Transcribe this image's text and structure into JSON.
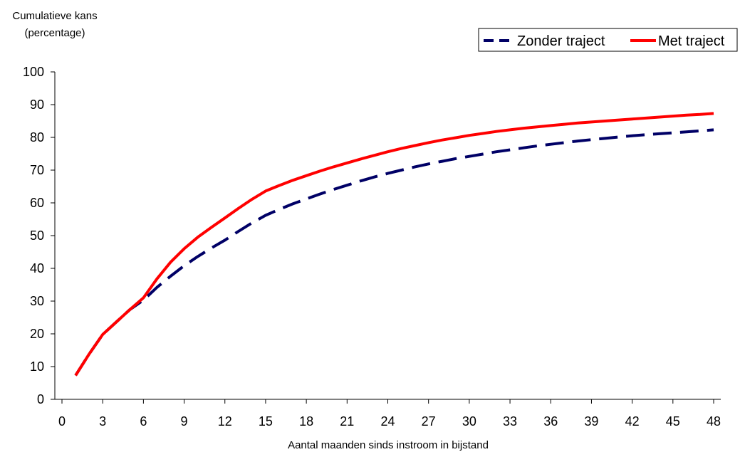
{
  "chart_data": {
    "type": "line",
    "ylabel_lines": [
      "Cumulatieve kans",
      "(percentage)"
    ],
    "xlabel": "Aantal maanden sinds instroom in bijstand",
    "xlim": [
      0,
      48
    ],
    "ylim": [
      0,
      100
    ],
    "xticks": [
      0,
      3,
      6,
      9,
      12,
      15,
      18,
      21,
      24,
      27,
      30,
      33,
      36,
      39,
      42,
      45,
      48
    ],
    "yticks": [
      0,
      10,
      20,
      30,
      40,
      50,
      60,
      70,
      80,
      90,
      100
    ],
    "grid": false,
    "legend_position": "top-right",
    "series": [
      {
        "name": "Zonder traject",
        "color": "#000066",
        "style": "dashed",
        "x": [
          1,
          2,
          3,
          4,
          5,
          6,
          7,
          8,
          9,
          10,
          11,
          12,
          13,
          14,
          15,
          16,
          17,
          18,
          19,
          20,
          21,
          22,
          23,
          24,
          25,
          26,
          27,
          28,
          29,
          30,
          31,
          32,
          33,
          34,
          35,
          36,
          37,
          38,
          39,
          40,
          41,
          42,
          43,
          44,
          45,
          46,
          47,
          48
        ],
        "values": [
          7.3,
          13.8,
          19.8,
          23.6,
          27.4,
          30.3,
          34.2,
          37.6,
          40.8,
          43.6,
          46.2,
          48.6,
          51.3,
          53.9,
          56.2,
          58.0,
          59.7,
          61.2,
          62.7,
          64.1,
          65.4,
          66.7,
          67.9,
          69.0,
          70.0,
          71.0,
          71.9,
          72.7,
          73.5,
          74.2,
          74.9,
          75.6,
          76.2,
          76.8,
          77.4,
          77.9,
          78.4,
          78.9,
          79.3,
          79.7,
          80.1,
          80.5,
          80.8,
          81.1,
          81.4,
          81.7,
          82.0,
          82.3
        ]
      },
      {
        "name": "Met traject",
        "color": "#ff0000",
        "style": "solid",
        "x": [
          1,
          2,
          3,
          4,
          5,
          6,
          7,
          8,
          9,
          10,
          11,
          12,
          13,
          14,
          15,
          16,
          17,
          18,
          19,
          20,
          21,
          22,
          23,
          24,
          25,
          26,
          27,
          28,
          29,
          30,
          31,
          32,
          33,
          34,
          35,
          36,
          37,
          38,
          39,
          40,
          41,
          42,
          43,
          44,
          45,
          46,
          47,
          48
        ],
        "values": [
          7.3,
          13.8,
          19.8,
          23.6,
          27.4,
          31.0,
          36.8,
          41.9,
          46.0,
          49.5,
          52.5,
          55.4,
          58.3,
          61.1,
          63.6,
          65.3,
          66.9,
          68.3,
          69.7,
          71.0,
          72.2,
          73.4,
          74.5,
          75.6,
          76.6,
          77.5,
          78.4,
          79.2,
          79.9,
          80.6,
          81.2,
          81.8,
          82.3,
          82.8,
          83.2,
          83.6,
          84.0,
          84.4,
          84.7,
          85.0,
          85.3,
          85.6,
          85.9,
          86.2,
          86.5,
          86.8,
          87.0,
          87.3
        ]
      }
    ]
  }
}
